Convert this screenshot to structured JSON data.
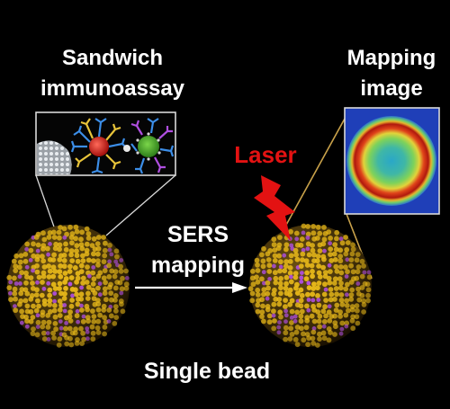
{
  "labels": {
    "sandwich_line1": "Sandwich",
    "sandwich_line2": "immunoassay",
    "mapping_line1": "Mapping",
    "mapping_line2": "image",
    "laser": "Laser",
    "sers_line1": "SERS",
    "sers_line2": "mapping",
    "single_bead": "Single  bead"
  },
  "colors": {
    "background": "#000000",
    "text": "#ffffff",
    "laser": "#e31212",
    "bead_dots": "#e8b91a",
    "bead_accent_dots": "#b04fe0",
    "connector_lines": "#c8a14a"
  }
}
